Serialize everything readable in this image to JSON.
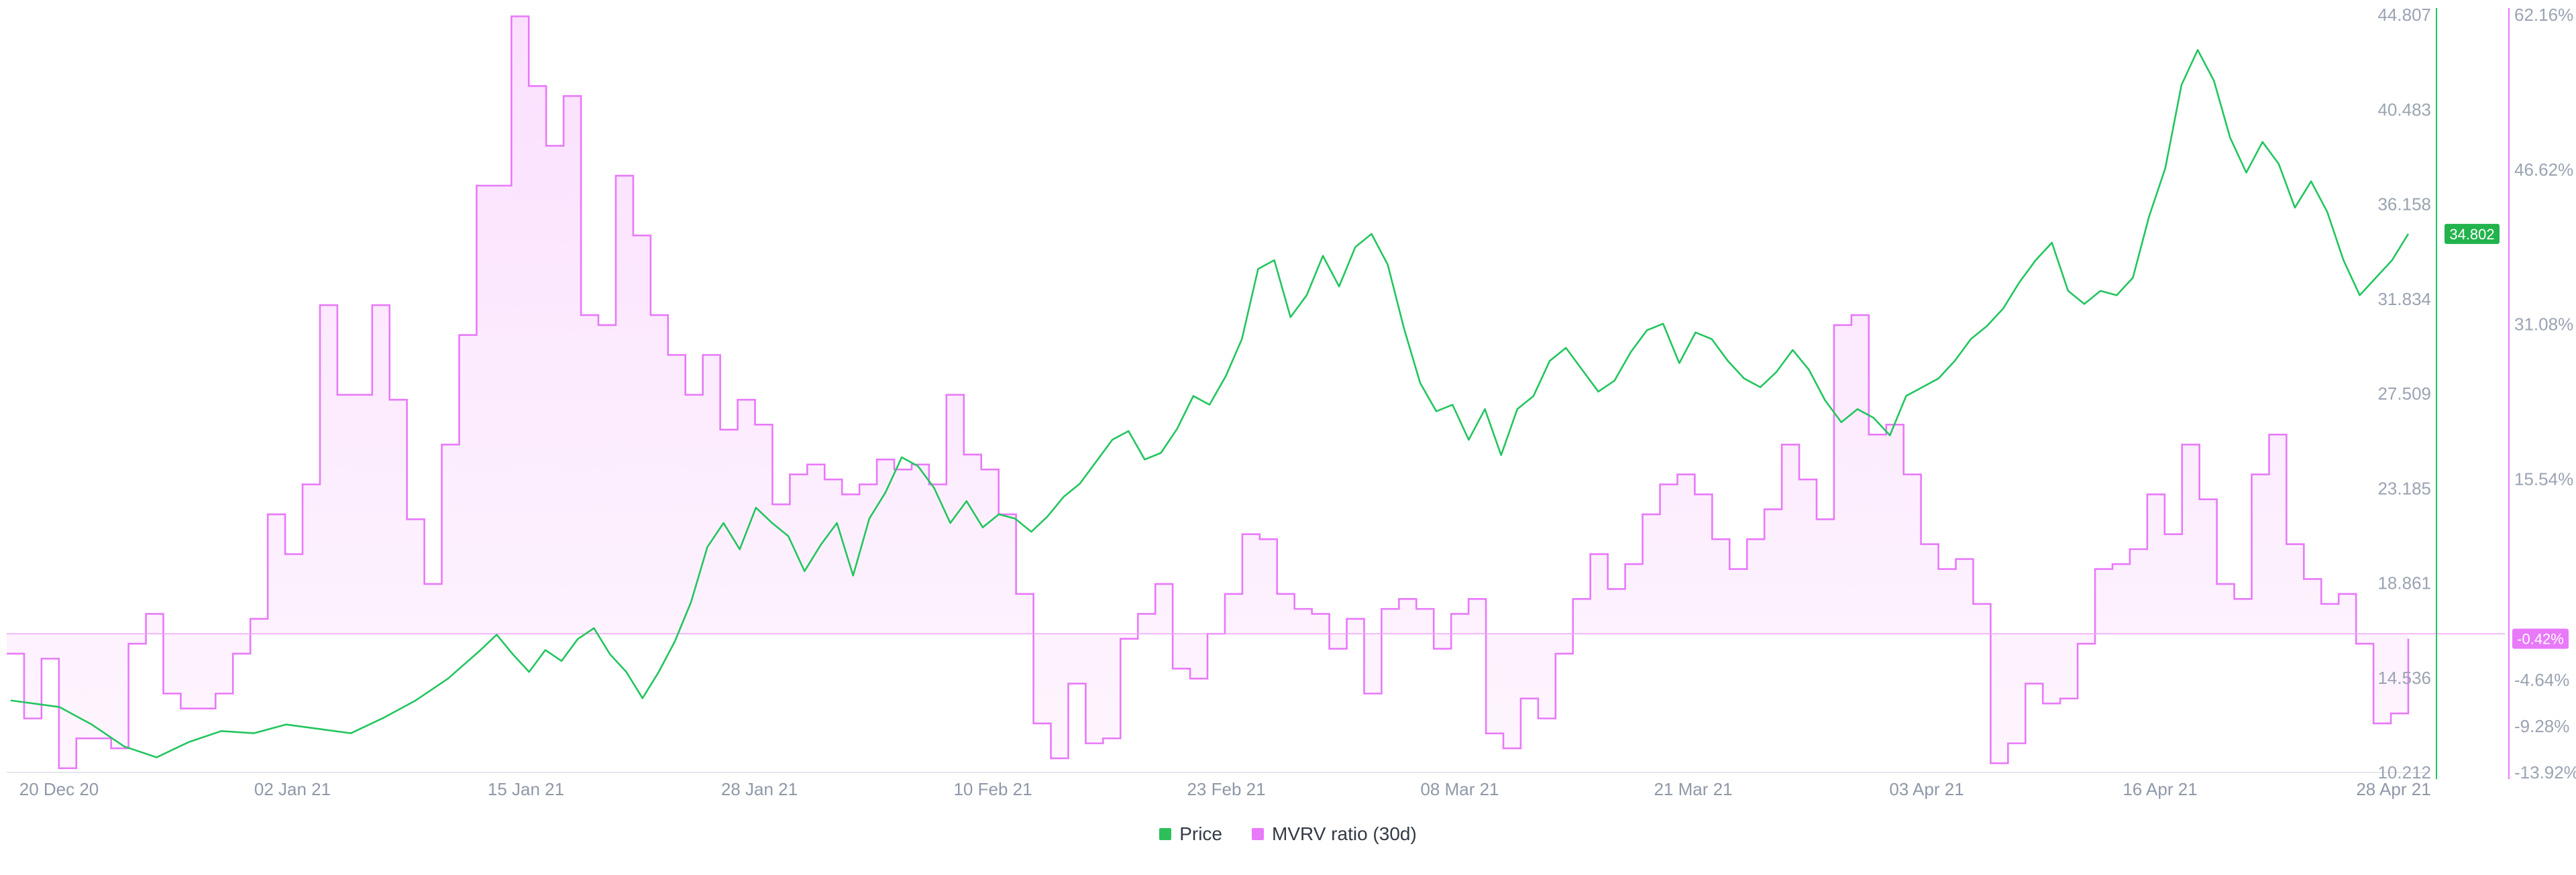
{
  "chart_data": {
    "type": "line",
    "title": "",
    "x_tick_labels": [
      "20 Dec 20",
      "02 Jan 21",
      "15 Jan 21",
      "28 Jan 21",
      "10 Feb 21",
      "23 Feb 21",
      "08 Mar 21",
      "21 Mar 21",
      "03 Apr 21",
      "16 Apr 21",
      "28 Apr 21"
    ],
    "price_axis": {
      "tick_labels": [
        "44.807",
        "40.483",
        "36.158",
        "31.834",
        "27.509",
        "23.185",
        "18.861",
        "14.536",
        "10.212"
      ],
      "range": [
        10.212,
        44.807
      ],
      "color": "#22c55e"
    },
    "mvrv_axis": {
      "tick_labels": [
        "62.16%",
        "46.62%",
        "31.08%",
        "15.54%",
        "-4.64%",
        "-9.28%",
        "-13.92%"
      ],
      "range": [
        -13.92,
        62.16
      ],
      "color": "#e879f9"
    },
    "current_price_label": "34.802",
    "current_mvrv_label": "-0.42%",
    "legend": [
      {
        "label": "Price",
        "color": "#2dbf5a"
      },
      {
        "label": "MVRV ratio (30d)",
        "color": "#e879f9"
      }
    ],
    "series": [
      {
        "name": "Price",
        "axis": "left-inner",
        "points": [
          [
            0,
            13.5
          ],
          [
            3,
            13.2
          ],
          [
            5,
            12.4
          ],
          [
            7,
            11.4
          ],
          [
            9,
            10.9
          ],
          [
            11,
            11.6
          ],
          [
            13,
            12.1
          ],
          [
            15,
            12.0
          ],
          [
            17,
            12.4
          ],
          [
            19,
            12.2
          ],
          [
            21,
            12.0
          ],
          [
            23,
            12.7
          ],
          [
            25,
            13.5
          ],
          [
            27,
            14.5
          ],
          [
            29,
            15.8
          ],
          [
            30,
            16.5
          ],
          [
            31,
            15.6
          ],
          [
            32,
            14.8
          ],
          [
            33,
            15.8
          ],
          [
            34,
            15.3
          ],
          [
            35,
            16.3
          ],
          [
            36,
            16.8
          ],
          [
            37,
            15.6
          ],
          [
            38,
            14.8
          ],
          [
            39,
            13.6
          ],
          [
            40,
            14.8
          ],
          [
            41,
            16.2
          ],
          [
            42,
            18.0
          ],
          [
            43,
            20.5
          ],
          [
            44,
            21.6
          ],
          [
            45,
            20.4
          ],
          [
            46,
            22.3
          ],
          [
            47,
            21.6
          ],
          [
            48,
            21.0
          ],
          [
            49,
            19.4
          ],
          [
            50,
            20.6
          ],
          [
            51,
            21.6
          ],
          [
            52,
            19.2
          ],
          [
            53,
            21.8
          ],
          [
            54,
            23.0
          ],
          [
            55,
            24.6
          ],
          [
            56,
            24.2
          ],
          [
            57,
            23.2
          ],
          [
            58,
            21.6
          ],
          [
            59,
            22.6
          ],
          [
            60,
            21.4
          ],
          [
            61,
            22.0
          ],
          [
            62,
            21.8
          ],
          [
            63,
            21.2
          ],
          [
            64,
            21.9
          ],
          [
            65,
            22.8
          ],
          [
            66,
            23.4
          ],
          [
            67,
            24.4
          ],
          [
            68,
            25.4
          ],
          [
            69,
            25.8
          ],
          [
            70,
            24.5
          ],
          [
            71,
            24.8
          ],
          [
            72,
            25.9
          ],
          [
            73,
            27.4
          ],
          [
            74,
            27.0
          ],
          [
            75,
            28.3
          ],
          [
            76,
            30.0
          ],
          [
            77,
            33.2
          ],
          [
            78,
            33.6
          ],
          [
            79,
            31.0
          ],
          [
            80,
            32.0
          ],
          [
            81,
            33.8
          ],
          [
            82,
            32.4
          ],
          [
            83,
            34.2
          ],
          [
            84,
            34.8
          ],
          [
            85,
            33.4
          ],
          [
            86,
            30.5
          ],
          [
            87,
            28.0
          ],
          [
            88,
            26.7
          ],
          [
            89,
            27.0
          ],
          [
            90,
            25.4
          ],
          [
            91,
            26.8
          ],
          [
            92,
            24.7
          ],
          [
            93,
            26.8
          ],
          [
            94,
            27.4
          ],
          [
            95,
            29.0
          ],
          [
            96,
            29.6
          ],
          [
            97,
            28.6
          ],
          [
            98,
            27.6
          ],
          [
            99,
            28.1
          ],
          [
            100,
            29.4
          ],
          [
            101,
            30.4
          ],
          [
            102,
            30.7
          ],
          [
            103,
            28.9
          ],
          [
            104,
            30.3
          ],
          [
            105,
            30.0
          ],
          [
            106,
            29.0
          ],
          [
            107,
            28.2
          ],
          [
            108,
            27.8
          ],
          [
            109,
            28.5
          ],
          [
            110,
            29.5
          ],
          [
            111,
            28.6
          ],
          [
            112,
            27.2
          ],
          [
            113,
            26.2
          ],
          [
            114,
            26.8
          ],
          [
            115,
            26.4
          ],
          [
            116,
            25.6
          ],
          [
            117,
            27.4
          ],
          [
            118,
            27.8
          ],
          [
            119,
            28.2
          ],
          [
            120,
            29.0
          ],
          [
            121,
            30.0
          ],
          [
            122,
            30.6
          ],
          [
            123,
            31.4
          ],
          [
            124,
            32.6
          ],
          [
            125,
            33.6
          ],
          [
            126,
            34.4
          ],
          [
            127,
            32.2
          ],
          [
            128,
            31.6
          ],
          [
            129,
            32.2
          ],
          [
            130,
            32.0
          ],
          [
            131,
            32.8
          ],
          [
            132,
            35.6
          ],
          [
            133,
            37.8
          ],
          [
            134,
            41.6
          ],
          [
            135,
            43.2
          ],
          [
            136,
            41.8
          ],
          [
            137,
            39.2
          ],
          [
            138,
            37.6
          ],
          [
            139,
            39.0
          ],
          [
            140,
            38.0
          ],
          [
            141,
            36.0
          ],
          [
            142,
            37.2
          ],
          [
            143,
            35.8
          ],
          [
            144,
            33.6
          ],
          [
            145,
            32.0
          ],
          [
            146,
            32.8
          ],
          [
            147,
            33.6
          ],
          [
            148,
            34.8
          ]
        ]
      },
      {
        "name": "MVRV ratio (30d)",
        "axis": "right-outer",
        "points": [
          [
            0,
            -2.0
          ],
          [
            1,
            -8.5
          ],
          [
            2,
            -2.5
          ],
          [
            3,
            -13.5
          ],
          [
            4,
            -10.5
          ],
          [
            6,
            -11.5
          ],
          [
            7,
            -1.0
          ],
          [
            8,
            2.0
          ],
          [
            9,
            -6.0
          ],
          [
            10,
            -7.5
          ],
          [
            12,
            -6.0
          ],
          [
            13,
            -2.0
          ],
          [
            14,
            1.5
          ],
          [
            15,
            12.0
          ],
          [
            16,
            8.0
          ],
          [
            17,
            15.0
          ],
          [
            18,
            33.0
          ],
          [
            19,
            24.0
          ],
          [
            21,
            33.0
          ],
          [
            22,
            23.5
          ],
          [
            23,
            11.5
          ],
          [
            24,
            5.0
          ],
          [
            25,
            19.0
          ],
          [
            26,
            30.0
          ],
          [
            27,
            45.0
          ],
          [
            29,
            62.0
          ],
          [
            30,
            55.0
          ],
          [
            31,
            49.0
          ],
          [
            32,
            54.0
          ],
          [
            33,
            32.0
          ],
          [
            34,
            31.0
          ],
          [
            35,
            46.0
          ],
          [
            36,
            40.0
          ],
          [
            37,
            32.0
          ],
          [
            38,
            28.0
          ],
          [
            39,
            24.0
          ],
          [
            40,
            28.0
          ],
          [
            41,
            20.5
          ],
          [
            42,
            23.5
          ],
          [
            43,
            21.0
          ],
          [
            44,
            13.0
          ],
          [
            45,
            16.0
          ],
          [
            46,
            17.0
          ],
          [
            47,
            15.5
          ],
          [
            48,
            14.0
          ],
          [
            49,
            15.0
          ],
          [
            50,
            17.5
          ],
          [
            51,
            16.5
          ],
          [
            52,
            17.0
          ],
          [
            53,
            15.0
          ],
          [
            54,
            24.0
          ],
          [
            55,
            18.0
          ],
          [
            56,
            16.5
          ],
          [
            57,
            12.0
          ],
          [
            58,
            4.0
          ],
          [
            59,
            -9.0
          ],
          [
            60,
            -12.5
          ],
          [
            61,
            -5.0
          ],
          [
            62,
            -11.0
          ],
          [
            63,
            -10.5
          ],
          [
            64,
            -0.5
          ],
          [
            65,
            2.0
          ],
          [
            66,
            5.0
          ],
          [
            67,
            -3.5
          ],
          [
            68,
            -4.5
          ],
          [
            69,
            0.0
          ],
          [
            70,
            4.0
          ],
          [
            71,
            10.0
          ],
          [
            72,
            9.5
          ],
          [
            73,
            4.0
          ],
          [
            74,
            2.5
          ],
          [
            75,
            2.0
          ],
          [
            76,
            -1.5
          ],
          [
            77,
            1.5
          ],
          [
            78,
            -6.0
          ],
          [
            79,
            2.5
          ],
          [
            80,
            3.5
          ],
          [
            81,
            2.5
          ],
          [
            82,
            -1.5
          ],
          [
            83,
            2.0
          ],
          [
            84,
            3.5
          ],
          [
            85,
            -10.0
          ],
          [
            86,
            -11.5
          ],
          [
            87,
            -6.5
          ],
          [
            88,
            -8.5
          ],
          [
            89,
            -2.0
          ],
          [
            90,
            3.5
          ],
          [
            91,
            8.0
          ],
          [
            92,
            4.5
          ],
          [
            93,
            7.0
          ],
          [
            94,
            12.0
          ],
          [
            95,
            15.0
          ],
          [
            96,
            16.0
          ],
          [
            97,
            14.0
          ],
          [
            98,
            9.5
          ],
          [
            99,
            6.5
          ],
          [
            100,
            9.5
          ],
          [
            101,
            12.5
          ],
          [
            102,
            19.0
          ],
          [
            103,
            15.5
          ],
          [
            104,
            11.5
          ],
          [
            105,
            31.0
          ],
          [
            106,
            32.0
          ],
          [
            107,
            20.0
          ],
          [
            108,
            21.0
          ],
          [
            109,
            16.0
          ],
          [
            110,
            9.0
          ],
          [
            111,
            6.5
          ],
          [
            112,
            7.5
          ],
          [
            113,
            3.0
          ],
          [
            114,
            -13.0
          ],
          [
            115,
            -11.0
          ],
          [
            116,
            -5.0
          ],
          [
            117,
            -7.0
          ],
          [
            118,
            -6.5
          ],
          [
            119,
            -1.0
          ],
          [
            120,
            6.5
          ],
          [
            121,
            7.0
          ],
          [
            122,
            8.5
          ],
          [
            123,
            14.0
          ],
          [
            124,
            10.0
          ],
          [
            125,
            19.0
          ],
          [
            126,
            13.5
          ],
          [
            127,
            5.0
          ],
          [
            128,
            3.5
          ],
          [
            129,
            16.0
          ],
          [
            130,
            20.0
          ],
          [
            131,
            9.0
          ],
          [
            132,
            5.5
          ],
          [
            133,
            3.0
          ],
          [
            134,
            4.0
          ],
          [
            135,
            -1.0
          ],
          [
            136,
            -9.0
          ],
          [
            137,
            -8.0
          ],
          [
            138,
            -0.5
          ]
        ]
      }
    ]
  }
}
